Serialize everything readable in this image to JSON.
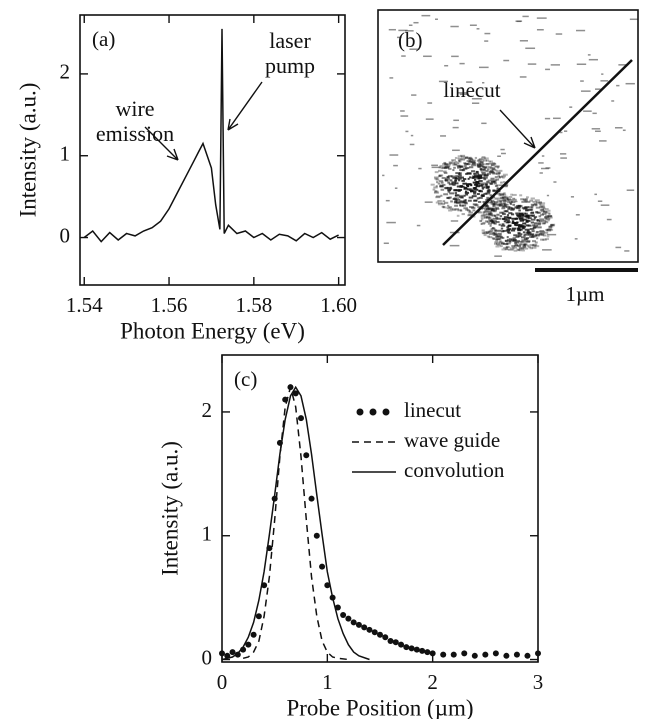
{
  "chart_data": [
    {
      "type": "line",
      "panel_label": "(a)",
      "x_label": "Photon Energy (eV)",
      "y_label": "Intensity (a.u.)",
      "annotations": [
        "wire emission",
        "laser pump"
      ],
      "color": "#111111",
      "x": [
        1.54,
        1.542,
        1.544,
        1.546,
        1.548,
        1.55,
        1.552,
        1.554,
        1.556,
        1.558,
        1.56,
        1.562,
        1.564,
        1.566,
        1.567,
        1.568,
        1.569,
        1.57,
        1.571,
        1.572,
        1.5725,
        1.573,
        1.574,
        1.576,
        1.578,
        1.58,
        1.582,
        1.584,
        1.586,
        1.588,
        1.59,
        1.592,
        1.594,
        1.596,
        1.598,
        1.6
      ],
      "values": [
        0.0,
        0.08,
        -0.05,
        0.06,
        -0.03,
        0.05,
        0.02,
        0.08,
        0.12,
        0.2,
        0.35,
        0.55,
        0.75,
        0.95,
        1.05,
        1.15,
        1.0,
        0.85,
        0.4,
        0.1,
        2.55,
        0.05,
        0.15,
        0.05,
        0.08,
        0.0,
        0.05,
        -0.03,
        0.04,
        0.02,
        -0.04,
        0.05,
        0.0,
        0.06,
        -0.02,
        0.03
      ],
      "xlim": [
        1.539,
        1.6015
      ],
      "ylim": [
        -0.58,
        2.72
      ],
      "xticks": [
        1.54,
        1.56,
        1.58,
        {
          "value": 1.6,
          "label": "1.60"
        }
      ],
      "yticks": [
        0,
        1,
        2
      ]
    },
    {
      "type": "image",
      "panel_label": "(b)",
      "annotations": [
        "linecut"
      ],
      "scale_bar_label": "1µm"
    },
    {
      "type": "scatter",
      "panel_label": "(c)",
      "x_label": "Probe Position (µm)",
      "y_label": "Intensity (a.u.)",
      "legend": "upper right",
      "xlim": [
        0,
        3
      ],
      "ylim": [
        -0.02,
        2.46
      ],
      "xticks": [
        0,
        1,
        2,
        3
      ],
      "yticks": [
        0,
        1,
        2
      ],
      "series": [
        {
          "name": "linecut",
          "color": "#111111",
          "style": "dots",
          "x": [
            0,
            0.05,
            0.1,
            0.15,
            0.2,
            0.25,
            0.3,
            0.35,
            0.4,
            0.45,
            0.5,
            0.55,
            0.6,
            0.65,
            0.7,
            0.75,
            0.8,
            0.85,
            0.9,
            0.95,
            1.0,
            1.05,
            1.1,
            1.15,
            1.2,
            1.25,
            1.3,
            1.35,
            1.4,
            1.45,
            1.5,
            1.55,
            1.6,
            1.65,
            1.7,
            1.75,
            1.8,
            1.85,
            1.9,
            1.95,
            2.0,
            2.1,
            2.2,
            2.3,
            2.4,
            2.5,
            2.6,
            2.7,
            2.8,
            2.9,
            3.0
          ],
          "values": [
            0.05,
            0.03,
            0.06,
            0.04,
            0.08,
            0.12,
            0.2,
            0.35,
            0.6,
            0.9,
            1.3,
            1.75,
            2.1,
            2.2,
            2.15,
            1.95,
            1.65,
            1.3,
            1.0,
            0.75,
            0.6,
            0.5,
            0.42,
            0.36,
            0.33,
            0.3,
            0.28,
            0.26,
            0.24,
            0.22,
            0.2,
            0.18,
            0.15,
            0.14,
            0.12,
            0.1,
            0.09,
            0.08,
            0.07,
            0.06,
            0.05,
            0.04,
            0.04,
            0.05,
            0.03,
            0.04,
            0.05,
            0.03,
            0.04,
            0.03,
            0.05
          ]
        },
        {
          "name": "wave guide",
          "color": "#111111",
          "style": "dashed",
          "x": [
            0.2,
            0.25,
            0.3,
            0.35,
            0.4,
            0.45,
            0.5,
            0.55,
            0.6,
            0.65,
            0.7,
            0.75,
            0.8,
            0.85,
            0.9,
            0.95,
            1.0,
            1.05,
            1.1,
            1.2
          ],
          "values": [
            0.01,
            0.02,
            0.06,
            0.15,
            0.35,
            0.67,
            1.13,
            1.64,
            2.04,
            2.2,
            2.04,
            1.64,
            1.13,
            0.67,
            0.35,
            0.15,
            0.06,
            0.02,
            0.01,
            0
          ]
        },
        {
          "name": "convolution",
          "color": "#111111",
          "style": "solid",
          "x": [
            0,
            0.05,
            0.1,
            0.15,
            0.2,
            0.25,
            0.3,
            0.35,
            0.4,
            0.45,
            0.5,
            0.55,
            0.6,
            0.65,
            0.7,
            0.75,
            0.8,
            0.85,
            0.9,
            0.95,
            1.0,
            1.05,
            1.1,
            1.15,
            1.2,
            1.25,
            1.3,
            1.4
          ],
          "values": [
            0,
            0.01,
            0.02,
            0.05,
            0.1,
            0.18,
            0.3,
            0.48,
            0.71,
            1.01,
            1.33,
            1.66,
            1.94,
            2.13,
            2.2,
            2.13,
            1.94,
            1.66,
            1.33,
            1.01,
            0.71,
            0.5,
            0.33,
            0.21,
            0.12,
            0.06,
            0.03,
            0
          ]
        }
      ]
    }
  ]
}
